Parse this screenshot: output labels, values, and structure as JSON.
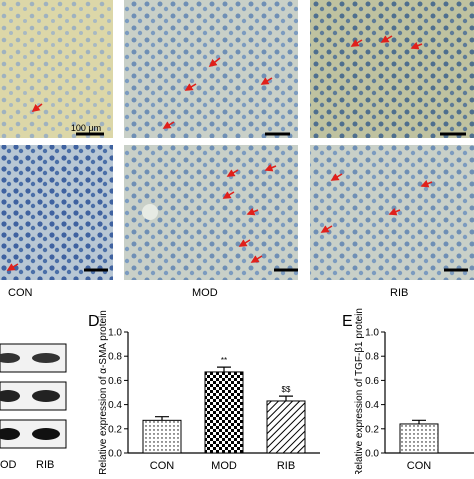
{
  "scale_bar": "100 μm",
  "micrograph_labels": [
    "CON",
    "MOD",
    "RIB"
  ],
  "blot_labels": [
    "OD",
    "RIB"
  ],
  "chart_data": [
    {
      "type": "bar",
      "panel": "D",
      "ylabel": "Relative expression of α-SMA protein",
      "categories": [
        "CON",
        "MOD",
        "RIB"
      ],
      "values": [
        0.27,
        0.67,
        0.43
      ],
      "errors": [
        0.03,
        0.04,
        0.04
      ],
      "annotations": {
        "MOD": "**",
        "RIB": "$$"
      },
      "fill_patterns": [
        "dots",
        "checks",
        "hatch"
      ],
      "color": "#000000",
      "ylim": [
        0,
        1.0
      ],
      "yticks": [
        {
          "value": 0,
          "label": "0.0"
        },
        0.2,
        0.4,
        0.6,
        0.8,
        {
          "value": 1.0,
          "label": "1.0"
        }
      ]
    },
    {
      "type": "bar",
      "panel": "E",
      "ylabel": "Relative expression of TGF-β1 protein",
      "categories": [
        "CON"
      ],
      "values": [
        0.24
      ],
      "errors": [
        0.03
      ],
      "fill_patterns": [
        "dots"
      ],
      "color": "#000000",
      "ylim": [
        0,
        1.0
      ],
      "yticks": [
        {
          "value": 0,
          "label": "0.0"
        },
        0.2,
        0.4,
        0.6,
        0.8,
        {
          "value": 1.0,
          "label": "1.0"
        }
      ]
    }
  ]
}
